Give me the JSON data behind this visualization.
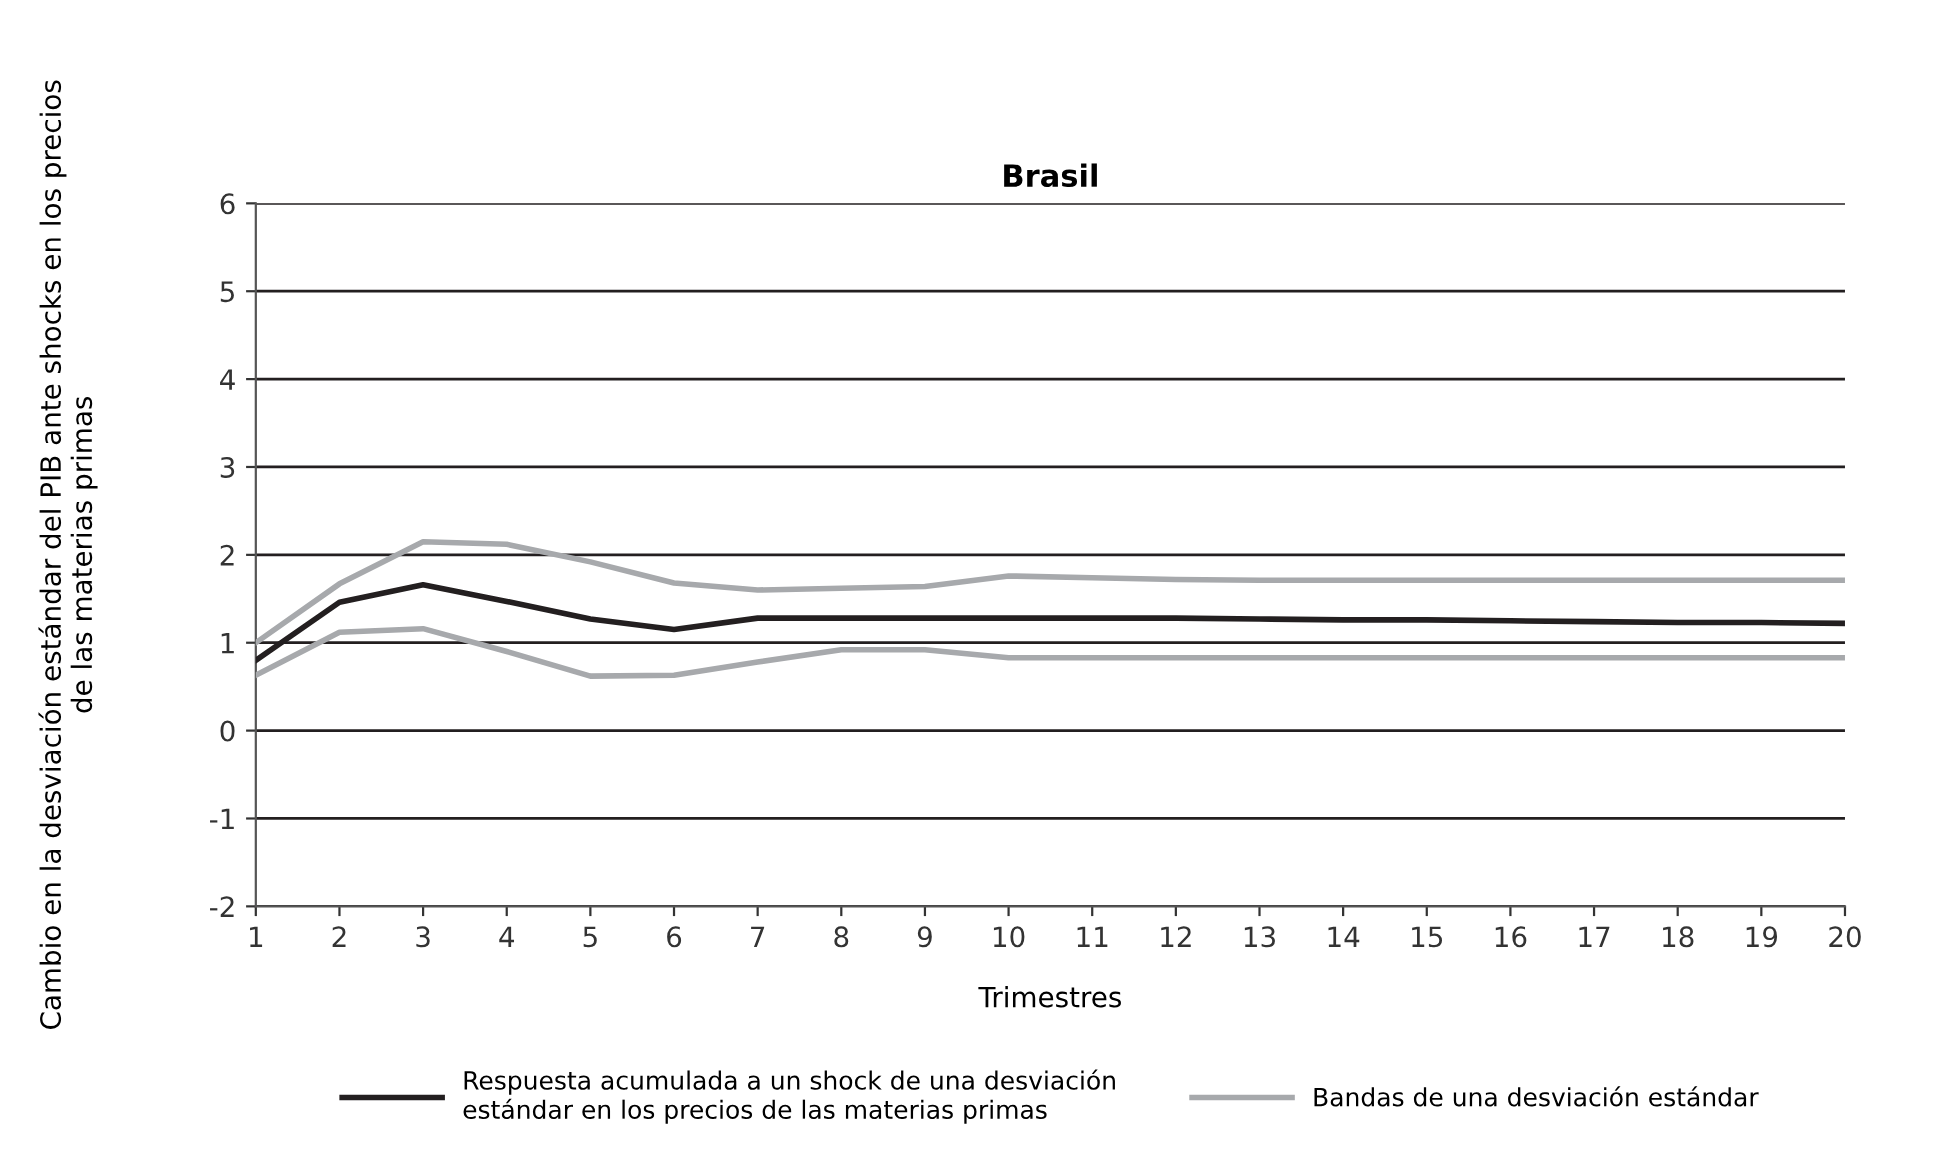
{
  "chart_data": {
    "type": "line",
    "title": "Brasil",
    "xlabel": "Trimestres",
    "ylabel": "Cambio en la desviación estándar del PIB ante shocks en los precios\nde las materias primas",
    "x": [
      1,
      2,
      3,
      4,
      5,
      6,
      7,
      8,
      9,
      10,
      11,
      12,
      13,
      14,
      15,
      16,
      17,
      18,
      19,
      20
    ],
    "series": [
      {
        "name": "Respuesta acumulada a un shock de una desviación\nestándar en los precios de las materias primas",
        "color": "#231f20",
        "values": [
          0.8,
          1.46,
          1.66,
          1.47,
          1.27,
          1.15,
          1.28,
          1.28,
          1.28,
          1.28,
          1.28,
          1.28,
          1.27,
          1.26,
          1.26,
          1.25,
          1.24,
          1.23,
          1.23,
          1.22
        ]
      },
      {
        "name": "Bandas de una desviación estándar",
        "color": "#a7a9ac",
        "values": [
          1.0,
          1.67,
          2.15,
          2.12,
          1.92,
          1.68,
          1.6,
          1.62,
          1.64,
          1.76,
          1.74,
          1.72,
          1.71,
          1.71,
          1.71,
          1.71,
          1.71,
          1.71,
          1.71,
          1.71
        ]
      },
      {
        "color": "#a7a9ac",
        "values": [
          0.63,
          1.12,
          1.16,
          0.9,
          0.62,
          0.63,
          0.78,
          0.92,
          0.92,
          0.83,
          0.83,
          0.83,
          0.83,
          0.83,
          0.83,
          0.83,
          0.83,
          0.83,
          0.83,
          0.83
        ]
      }
    ],
    "xlim": [
      1,
      20
    ],
    "xticks": [
      1,
      2,
      3,
      4,
      5,
      6,
      7,
      8,
      9,
      10,
      11,
      12,
      13,
      14,
      15,
      16,
      17,
      18,
      19,
      20
    ],
    "ylim": [
      -2,
      6
    ],
    "yticks": [
      -2,
      -1,
      0,
      1,
      2,
      3,
      4,
      5,
      6
    ],
    "grid": "y",
    "legend": "bottom",
    "line_style": "solid",
    "marker": "none"
  }
}
